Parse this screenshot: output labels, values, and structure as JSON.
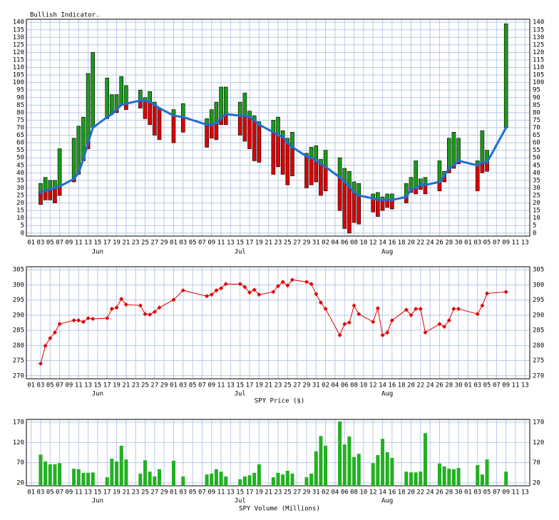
{
  "chart_data": [
    {
      "type": "range_bar",
      "title": "Bullish Indicator.",
      "x": [
        "06-03",
        "06-04",
        "06-05",
        "06-06",
        "06-07",
        "06-10",
        "06-11",
        "06-12",
        "06-13",
        "06-14",
        "06-17",
        "06-18",
        "06-19",
        "06-20",
        "06-21",
        "06-24",
        "06-25",
        "06-26",
        "06-27",
        "06-28",
        "07-01",
        "07-03",
        "07-08",
        "07-09",
        "07-10",
        "07-11",
        "07-12",
        "07-15",
        "07-16",
        "07-17",
        "07-18",
        "07-19",
        "07-22",
        "07-23",
        "07-24",
        "07-25",
        "07-26",
        "07-29",
        "07-30",
        "07-31",
        "08-01",
        "08-02",
        "08-05",
        "08-06",
        "08-07",
        "08-08",
        "08-09",
        "08-12",
        "08-13",
        "08-14",
        "08-15",
        "08-16",
        "08-19",
        "08-20",
        "08-21",
        "08-22",
        "08-23",
        "08-26",
        "08-27",
        "08-28",
        "08-29",
        "08-30",
        "09-03",
        "09-04",
        "09-05",
        "09-09"
      ],
      "high": [
        33,
        37,
        35,
        35,
        56,
        63,
        71,
        77,
        106,
        120,
        103,
        92,
        92,
        104,
        98,
        95,
        90,
        94,
        87,
        83,
        82,
        86,
        76,
        82,
        87,
        97,
        97,
        87,
        93,
        81,
        78,
        74,
        75,
        77,
        68,
        63,
        67,
        53,
        57,
        58,
        49,
        55,
        50,
        43,
        41,
        34,
        33,
        26,
        27,
        24,
        26,
        26,
        33,
        37,
        48,
        36,
        37,
        48,
        41,
        63,
        67,
        63,
        48,
        68,
        55,
        139
      ],
      "low": [
        19,
        22,
        22,
        20,
        25,
        34,
        39,
        48,
        56,
        70,
        76,
        79,
        80,
        85,
        82,
        83,
        76,
        72,
        65,
        62,
        60,
        67,
        57,
        63,
        62,
        72,
        72,
        65,
        61,
        56,
        48,
        47,
        39,
        44,
        39,
        32,
        38,
        30,
        32,
        34,
        25,
        28,
        15,
        3,
        0,
        7,
        6,
        14,
        11,
        15,
        17,
        16,
        20,
        27,
        26,
        29,
        26,
        28,
        34,
        40,
        43,
        46,
        28,
        40,
        41,
        70
      ],
      "average": [
        27,
        28,
        29,
        30,
        31,
        36,
        40,
        49,
        60,
        70,
        77,
        79,
        82,
        85,
        86,
        88,
        88,
        87,
        85,
        83,
        78,
        77,
        72,
        72,
        73,
        76,
        79,
        78,
        78,
        77,
        75,
        72,
        67,
        65,
        64,
        60,
        57,
        51,
        50,
        48,
        46,
        44,
        37,
        34,
        31,
        27,
        25,
        23,
        22,
        22,
        22,
        22,
        24,
        29,
        30,
        32,
        32,
        34,
        38,
        43,
        45,
        48,
        45,
        47,
        47,
        70
      ],
      "up_color": "#1a9a1a",
      "down_color": "#dd0000",
      "line_color": "#1f6fd0",
      "xlim": [
        "05-31",
        "09-14"
      ],
      "ylim": [
        -2,
        142
      ],
      "yticks": [
        0,
        5,
        10,
        15,
        20,
        25,
        30,
        35,
        40,
        45,
        50,
        55,
        60,
        65,
        70,
        75,
        80,
        85,
        90,
        95,
        100,
        105,
        110,
        115,
        120,
        125,
        130,
        135,
        140
      ],
      "xticks": [
        {
          "value": "06-01",
          "label": "01"
        },
        {
          "value": "06-03",
          "label": "03"
        },
        {
          "value": "06-05",
          "label": "05"
        },
        {
          "value": "06-07",
          "label": "07"
        },
        {
          "value": "06-09",
          "label": "09"
        },
        {
          "value": "06-11",
          "label": "11"
        },
        {
          "value": "06-13",
          "label": "13"
        },
        {
          "value": "06-15",
          "label": "15"
        },
        {
          "value": "06-17",
          "label": "17"
        },
        {
          "value": "06-19",
          "label": "19"
        },
        {
          "value": "06-21",
          "label": "21"
        },
        {
          "value": "06-23",
          "label": "23"
        },
        {
          "value": "06-25",
          "label": "25"
        },
        {
          "value": "06-27",
          "label": "27"
        },
        {
          "value": "06-29",
          "label": "29"
        },
        {
          "value": "07-01",
          "label": "01"
        },
        {
          "value": "07-03",
          "label": "03"
        },
        {
          "value": "07-05",
          "label": "05"
        },
        {
          "value": "07-07",
          "label": "07"
        },
        {
          "value": "07-09",
          "label": "09"
        },
        {
          "value": "07-11",
          "label": "11"
        },
        {
          "value": "07-13",
          "label": "13"
        },
        {
          "value": "07-15",
          "label": "15"
        },
        {
          "value": "07-17",
          "label": "17"
        },
        {
          "value": "07-19",
          "label": "19"
        },
        {
          "value": "07-21",
          "label": "21"
        },
        {
          "value": "07-23",
          "label": "23"
        },
        {
          "value": "07-25",
          "label": "25"
        },
        {
          "value": "07-27",
          "label": "27"
        },
        {
          "value": "07-29",
          "label": "29"
        },
        {
          "value": "07-31",
          "label": "31"
        },
        {
          "value": "08-02",
          "label": "02"
        },
        {
          "value": "08-04",
          "label": "04"
        },
        {
          "value": "08-06",
          "label": "06"
        },
        {
          "value": "08-08",
          "label": "08"
        },
        {
          "value": "08-10",
          "label": "10"
        },
        {
          "value": "08-12",
          "label": "12"
        },
        {
          "value": "08-14",
          "label": "14"
        },
        {
          "value": "08-16",
          "label": "16"
        },
        {
          "value": "08-18",
          "label": "18"
        },
        {
          "value": "08-20",
          "label": "20"
        },
        {
          "value": "08-22",
          "label": "22"
        },
        {
          "value": "08-24",
          "label": "24"
        },
        {
          "value": "08-26",
          "label": "26"
        },
        {
          "value": "08-28",
          "label": "28"
        },
        {
          "value": "08-30",
          "label": "30"
        },
        {
          "value": "09-01",
          "label": "01"
        },
        {
          "value": "09-03",
          "label": "03"
        },
        {
          "value": "09-05",
          "label": "05"
        },
        {
          "value": "09-07",
          "label": "07"
        },
        {
          "value": "09-09",
          "label": "09"
        },
        {
          "value": "09-11",
          "label": "11"
        },
        {
          "value": "09-13",
          "label": "13"
        }
      ],
      "month_labels": [
        {
          "value": "06-15",
          "label": "Jun"
        },
        {
          "value": "07-15",
          "label": "Jul"
        },
        {
          "value": "08-15",
          "label": "Aug"
        }
      ]
    },
    {
      "type": "line",
      "title": "SPY Price ($)",
      "x": [
        "06-03",
        "06-04",
        "06-05",
        "06-06",
        "06-07",
        "06-10",
        "06-11",
        "06-12",
        "06-13",
        "06-14",
        "06-17",
        "06-18",
        "06-19",
        "06-20",
        "06-21",
        "06-24",
        "06-25",
        "06-26",
        "06-27",
        "06-28",
        "07-01",
        "07-03",
        "07-08",
        "07-09",
        "07-10",
        "07-11",
        "07-12",
        "07-15",
        "07-16",
        "07-17",
        "07-18",
        "07-19",
        "07-22",
        "07-23",
        "07-24",
        "07-25",
        "07-26",
        "07-29",
        "07-30",
        "07-31",
        "08-01",
        "08-02",
        "08-05",
        "08-06",
        "08-07",
        "08-08",
        "08-09",
        "08-12",
        "08-13",
        "08-14",
        "08-15",
        "08-16",
        "08-19",
        "08-20",
        "08-21",
        "08-22",
        "08-23",
        "08-26",
        "08-27",
        "08-28",
        "08-29",
        "08-30",
        "09-03",
        "09-04",
        "09-05",
        "09-09"
      ],
      "values": [
        274.0,
        279.9,
        282.4,
        284.3,
        287.1,
        288.3,
        288.3,
        287.8,
        289.0,
        288.8,
        289.0,
        292.1,
        292.5,
        295.4,
        293.5,
        293.2,
        290.4,
        290.2,
        291.1,
        292.5,
        295.1,
        298.2,
        296.3,
        296.8,
        298.2,
        298.9,
        300.3,
        300.3,
        299.3,
        297.5,
        298.4,
        296.8,
        297.7,
        299.6,
        301.0,
        299.8,
        301.7,
        301.0,
        300.3,
        297.0,
        294.2,
        292.1,
        283.4,
        287.1,
        287.6,
        293.2,
        290.4,
        287.8,
        292.3,
        283.4,
        284.3,
        288.3,
        291.8,
        290.0,
        292.1,
        292.1,
        284.3,
        287.1,
        286.2,
        288.3,
        292.1,
        292.1,
        290.4,
        293.2,
        297.2,
        297.7
      ],
      "color": "#e00000",
      "xlim": [
        "05-31",
        "09-14"
      ],
      "ylim": [
        269,
        306
      ],
      "yticks": [
        270,
        275,
        280,
        285,
        290,
        295,
        300,
        305
      ]
    },
    {
      "type": "bar",
      "title": "SPY Volume (Millions)",
      "x": [
        "06-03",
        "06-04",
        "06-05",
        "06-06",
        "06-07",
        "06-10",
        "06-11",
        "06-12",
        "06-13",
        "06-14",
        "06-17",
        "06-18",
        "06-19",
        "06-20",
        "06-21",
        "06-24",
        "06-25",
        "06-26",
        "06-27",
        "06-28",
        "07-01",
        "07-03",
        "07-08",
        "07-09",
        "07-10",
        "07-11",
        "07-12",
        "07-15",
        "07-16",
        "07-17",
        "07-18",
        "07-19",
        "07-22",
        "07-23",
        "07-24",
        "07-25",
        "07-26",
        "07-29",
        "07-30",
        "07-31",
        "08-01",
        "08-02",
        "08-05",
        "08-06",
        "08-07",
        "08-08",
        "08-09",
        "08-12",
        "08-13",
        "08-14",
        "08-15",
        "08-16",
        "08-19",
        "08-20",
        "08-21",
        "08-22",
        "08-23",
        "08-26",
        "08-27",
        "08-28",
        "08-29",
        "08-30",
        "09-03",
        "09-04",
        "09-05",
        "09-09"
      ],
      "values": [
        90,
        73,
        66,
        66,
        69,
        55,
        54,
        45,
        45,
        46,
        34,
        80,
        73,
        112,
        78,
        43,
        76,
        48,
        36,
        54,
        75,
        36,
        41,
        43,
        54,
        48,
        36,
        29,
        36,
        39,
        45,
        66,
        34,
        45,
        41,
        50,
        43,
        34,
        43,
        98,
        136,
        112,
        172,
        115,
        135,
        84,
        92,
        69,
        89,
        129,
        96,
        82,
        48,
        46,
        46,
        48,
        143,
        68,
        61,
        55,
        54,
        57,
        64,
        41,
        78,
        48
      ],
      "color": "#22b022",
      "xlim": [
        "05-31",
        "09-14"
      ],
      "ylim": [
        13,
        177
      ],
      "yticks": [
        20,
        70,
        120,
        170
      ]
    }
  ]
}
